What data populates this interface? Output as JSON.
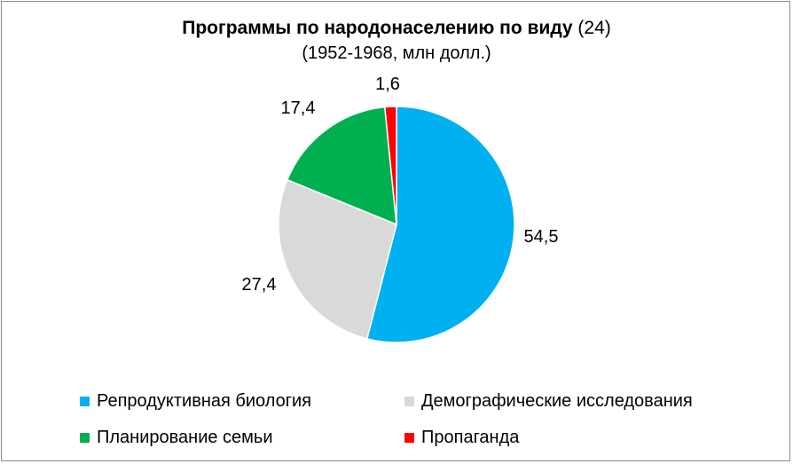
{
  "chart_data": {
    "type": "pie",
    "title_bold": "Программы по народонаселению по виду",
    "title_suffix": " (24)",
    "subtitle": "(1952-1968, млн долл.)",
    "categories": [
      "Репродуктивная биология",
      "Демографические исследования",
      "Планирование семьи",
      "Пропаганда"
    ],
    "values": [
      54.5,
      27.4,
      17.4,
      1.6
    ],
    "labels": [
      "54,5",
      "27,4",
      "17,4",
      "1,6"
    ],
    "colors": [
      "#00B0F0",
      "#D9D9D9",
      "#00B050",
      "#FF0000"
    ],
    "start": "12 o'clock",
    "direction": "clockwise",
    "legend_position": "bottom"
  }
}
